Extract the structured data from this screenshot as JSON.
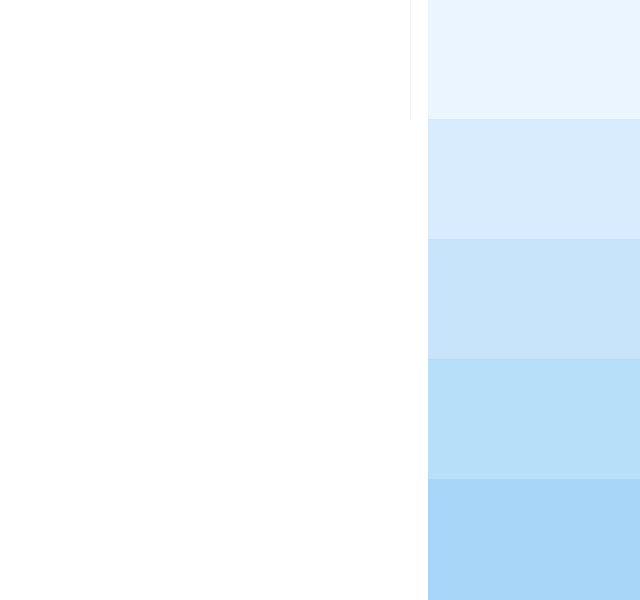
{
  "swatches": [
    {
      "color": "#EAF5FF"
    },
    {
      "color": "#D8ECFD"
    },
    {
      "color": "#C8E4FB"
    },
    {
      "color": "#B8DFFA"
    },
    {
      "color": "#A8D6F8"
    }
  ]
}
